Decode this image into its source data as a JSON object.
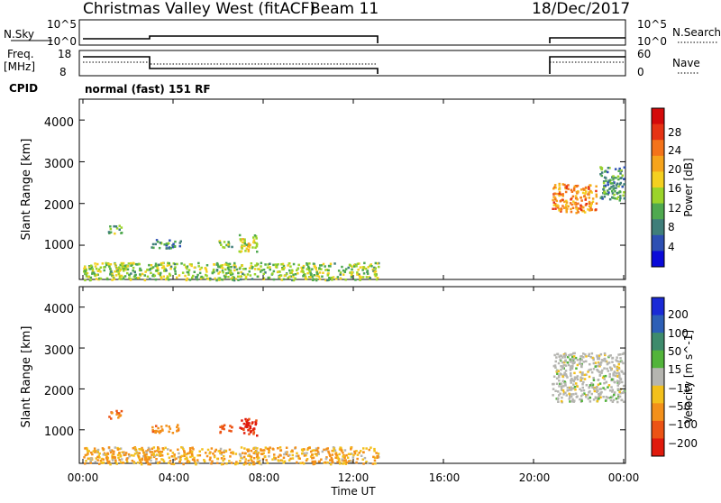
{
  "header": {
    "station": "Christmas Valley West (fitACF)",
    "beam": "Beam 11",
    "date": "18/Dec/2017"
  },
  "panels": {
    "nsky": {
      "label": "N.Sky",
      "left_ticks": [
        "10^5",
        "10^0"
      ],
      "right_label": "N.Search",
      "right_ticks": [
        "10^5",
        "10^0"
      ]
    },
    "freq": {
      "label_line1": "Freq.",
      "label_line2": "[MHz]",
      "left_ticks": [
        "18",
        "8"
      ],
      "right_label": "Nave",
      "right_ticks": [
        "60",
        "0"
      ]
    },
    "cpid": {
      "label": "CPID",
      "value": "normal (fast) 151 RF"
    }
  },
  "power_panel": {
    "ylabel": "Slant Range [km]",
    "yticks": [
      "4000",
      "3000",
      "2000",
      "1000"
    ],
    "colorbar_label": "Power [dB]",
    "colorbar_ticks": [
      "28",
      "24",
      "20",
      "16",
      "12",
      "8",
      "4"
    ],
    "colors": [
      "#0a0ad8",
      "#2d4fb3",
      "#3f7e7a",
      "#4fa94f",
      "#9bd42a",
      "#f4d020",
      "#f6a41c",
      "#f4731a",
      "#e63314",
      "#d40a0a"
    ]
  },
  "velocity_panel": {
    "ylabel": "Slant Range [km]",
    "yticks": [
      "4000",
      "3000",
      "2000",
      "1000"
    ],
    "colorbar_label": "Velocity [m s^-1]",
    "colorbar_ticks": [
      "200",
      "100",
      "50",
      "15",
      "−15",
      "−50",
      "−100",
      "−200"
    ],
    "colors": [
      "#1a2ad6",
      "#2d5fb6",
      "#3e8b6c",
      "#52b43a",
      "#b5b5b0",
      "#f3c01c",
      "#f3901a",
      "#ec5314",
      "#e01a0c"
    ]
  },
  "x_axis": {
    "ticks": [
      "00:00",
      "04:00",
      "08:00",
      "12:00",
      "16:00",
      "20:00",
      "00:00"
    ],
    "label": "Time UT"
  },
  "chart_data": {
    "type": "heatmap",
    "title": "Christmas Valley West (fitACF)",
    "x_axis_label": "Time UT",
    "x_range_hours": [
      0,
      24
    ],
    "y_range_km": [
      180,
      4500
    ],
    "data_gap_hours": [
      13.1,
      20.8
    ],
    "nsky_level_approx": {
      "before_3h": "low",
      "after_3h": "slightly higher"
    },
    "freq_mhz": {
      "0-3h": 14.5,
      "3-13.1h": 10,
      "20.8-24h": 14.5
    },
    "nave_approx": {
      "0-3h": 40,
      "3-13.1h": 30,
      "20.8-24h": 40
    },
    "power_regions_db": [
      {
        "time_h": [
          0.0,
          13.1
        ],
        "range_km": [
          180,
          600
        ],
        "power": 14
      },
      {
        "time_h": [
          1.1,
          1.7
        ],
        "range_km": [
          1300,
          1500
        ],
        "power": 12
      },
      {
        "time_h": [
          3.0,
          4.3
        ],
        "range_km": [
          950,
          1150
        ],
        "power": 9
      },
      {
        "time_h": [
          6.0,
          6.6
        ],
        "range_km": [
          950,
          1150
        ],
        "power": 12
      },
      {
        "time_h": [
          6.9,
          7.7
        ],
        "range_km": [
          850,
          1300
        ],
        "power": 16
      },
      {
        "time_h": [
          20.8,
          22.8
        ],
        "range_km": [
          1800,
          2500
        ],
        "power": 22
      },
      {
        "time_h": [
          22.9,
          24.0
        ],
        "range_km": [
          2100,
          2900
        ],
        "power": 10
      }
    ],
    "velocity_regions_ms": [
      {
        "time_h": [
          0.0,
          13.1
        ],
        "range_km": [
          180,
          600
        ],
        "velocity": -30
      },
      {
        "time_h": [
          1.1,
          1.7
        ],
        "range_km": [
          1300,
          1500
        ],
        "velocity": -80
      },
      {
        "time_h": [
          3.0,
          4.3
        ],
        "range_km": [
          950,
          1150
        ],
        "velocity": -60
      },
      {
        "time_h": [
          6.0,
          6.6
        ],
        "range_km": [
          950,
          1150
        ],
        "velocity": -90
      },
      {
        "time_h": [
          6.9,
          7.7
        ],
        "range_km": [
          850,
          1300
        ],
        "velocity": -150
      },
      {
        "time_h": [
          20.8,
          24.0
        ],
        "range_km": [
          1700,
          2900
        ],
        "velocity": 0
      }
    ]
  }
}
